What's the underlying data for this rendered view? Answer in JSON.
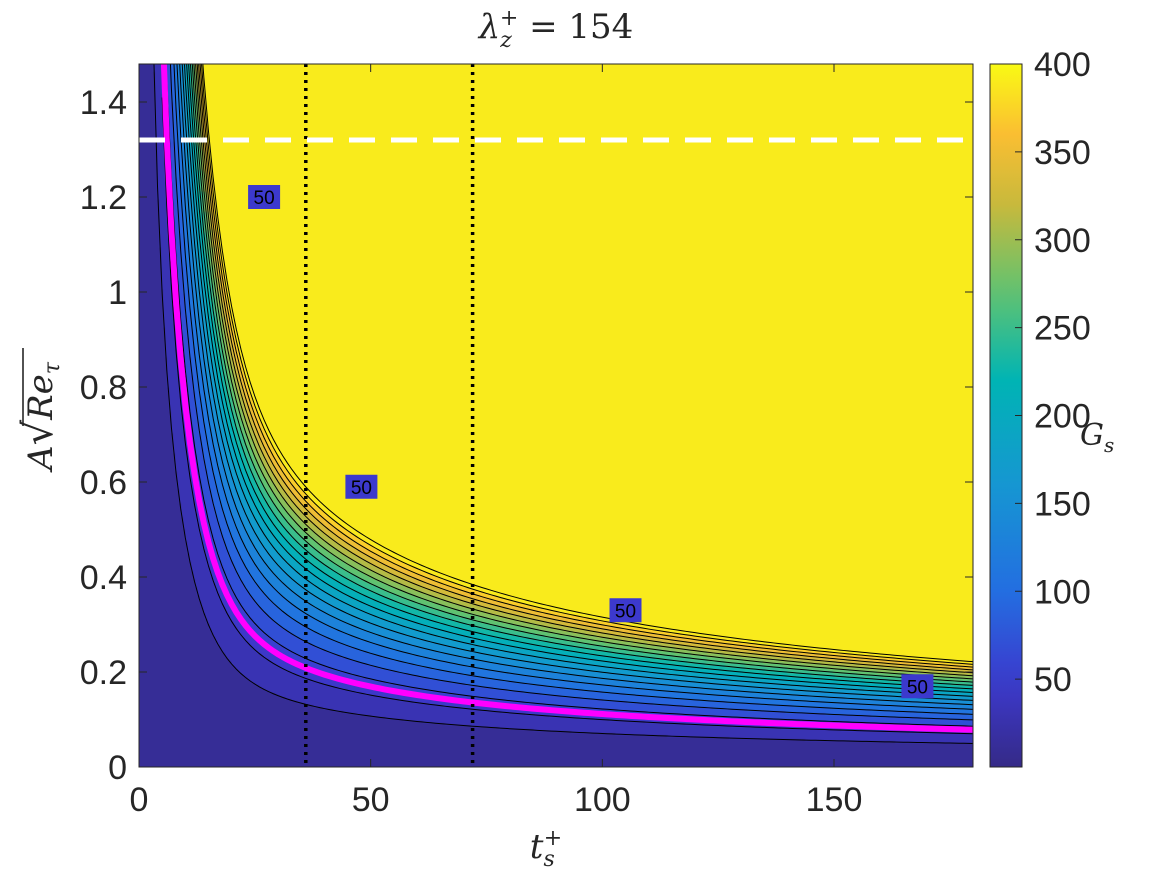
{
  "chart_data": {
    "type": "contour",
    "title": "λz+ = 154",
    "title_parts": {
      "base": "λ",
      "sup": "+",
      "sub": "z",
      "rest": " = 154"
    },
    "xlabel": "ts+",
    "xlabel_parts": {
      "base": "t",
      "sup": "+",
      "sub": "s"
    },
    "ylabel": "A√Reτ",
    "ylabel_parts": {
      "base": "A",
      "radicand": "Re",
      "radicand_sub": "τ"
    },
    "colorbar_label": "Gs",
    "colorbar_label_parts": {
      "base": "G",
      "sub": "s"
    },
    "xlim": [
      0,
      180
    ],
    "ylim": [
      0,
      1.48
    ],
    "xticks": [
      0,
      50,
      100,
      150
    ],
    "yticks": [
      0,
      0.2,
      0.4,
      0.6,
      0.8,
      1,
      1.2,
      1.4
    ],
    "xtick_labels": [
      "0",
      "50",
      "100",
      "150"
    ],
    "ytick_labels": [
      "0",
      "0.2",
      "0.4",
      "0.6",
      "0.8",
      "1",
      "1.2",
      "1.4"
    ],
    "clim": [
      0,
      400
    ],
    "colorbar_ticks": [
      50,
      100,
      150,
      200,
      250,
      300,
      350,
      400
    ],
    "colorbar_tick_labels": [
      "50",
      "100",
      "150",
      "200",
      "250",
      "300",
      "350",
      "400"
    ],
    "colormap": "parula",
    "contour_levels": [
      20,
      40,
      50,
      60,
      80,
      100,
      120,
      140,
      160,
      180,
      200,
      220,
      240,
      260,
      280,
      300,
      320,
      340,
      360,
      380,
      400
    ],
    "highlight_level": {
      "value": 50,
      "color": "#ff00ff",
      "label": "50"
    },
    "highlight_label_positions": [
      {
        "x": 27,
        "y": 1.2
      },
      {
        "x": 48,
        "y": 0.59
      },
      {
        "x": 105,
        "y": 0.33
      },
      {
        "x": 168,
        "y": 0.17
      }
    ],
    "vertical_dotted_lines": [
      {
        "x": 36,
        "color": "#000000"
      },
      {
        "x": 72,
        "color": "#000000"
      }
    ],
    "horizontal_dashed_line": {
      "y": 1.32,
      "color": "#ffffff"
    },
    "model": {
      "p": 1.6,
      "ts_offset": 14,
      "ts_scale": 6,
      "a_exp": 2,
      "ts_exp": 1.2,
      "cap": 400
    }
  }
}
